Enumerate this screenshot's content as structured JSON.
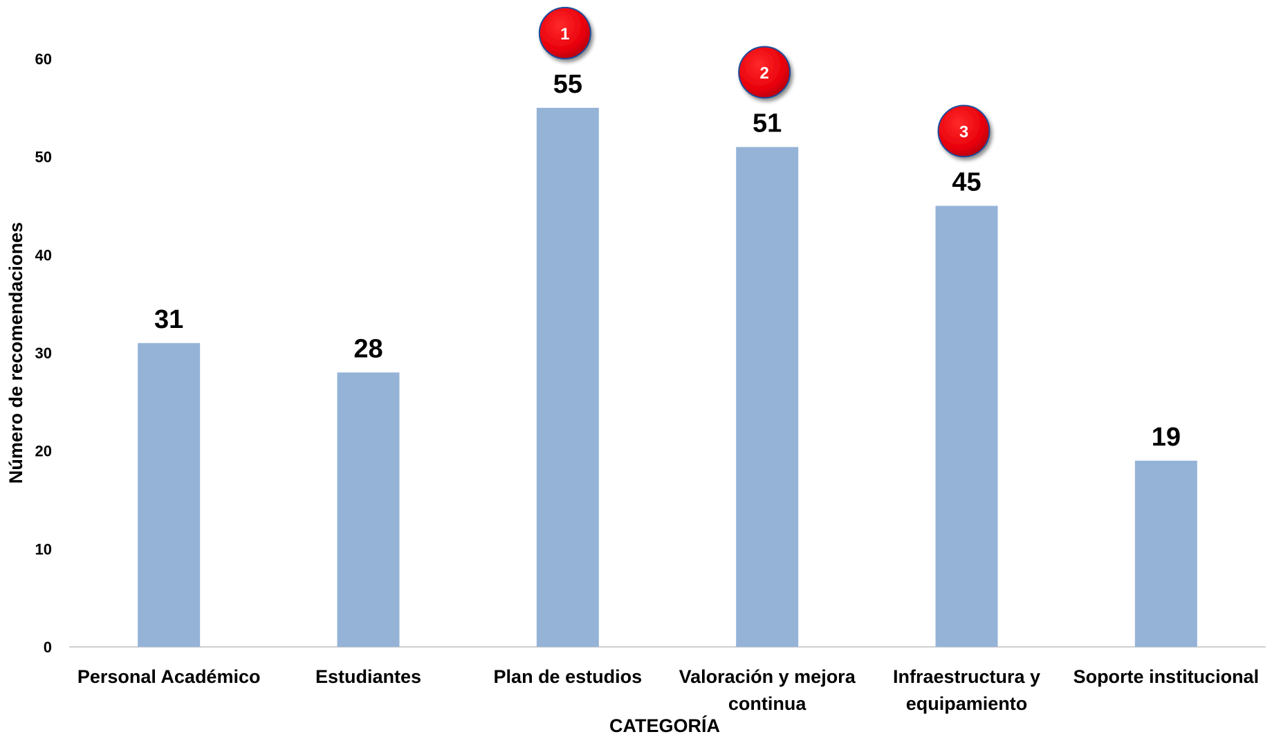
{
  "chart_data": {
    "type": "bar",
    "categories": [
      [
        "Personal Académico"
      ],
      [
        "Estudiantes"
      ],
      [
        "Plan de estudios"
      ],
      [
        "Valoración y mejora",
        "continua"
      ],
      [
        "Infraestructura y",
        "equipamiento"
      ],
      [
        "Soporte institucional"
      ]
    ],
    "values": [
      31,
      28,
      55,
      51,
      45,
      19
    ],
    "ranks": [
      null,
      null,
      "1",
      "2",
      "3",
      null
    ],
    "xlabel": "CATEGORÍA",
    "ylabel": "Número de recomendaciones",
    "ylim": [
      0,
      60
    ],
    "yticks": [
      0,
      10,
      20,
      30,
      40,
      50,
      60
    ],
    "grid": false,
    "bar_color": "#95B3D7",
    "badge_color": "#E8000B"
  }
}
